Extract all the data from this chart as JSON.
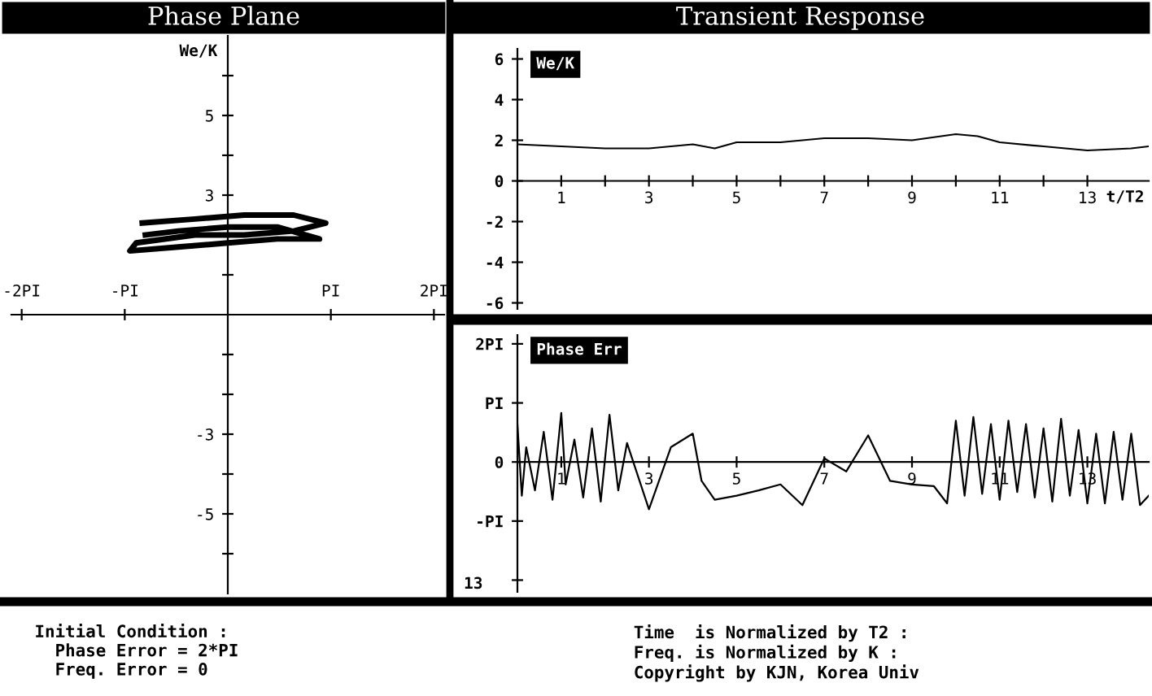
{
  "chart_data": [
    {
      "type": "line",
      "title": "Phase Plane",
      "ylabel": "We/K",
      "series": [
        {
          "color": "#000000",
          "x": [
            -0.83,
            -0.32,
            0.16,
            0.64,
            0.95,
            0.64,
            0.16,
            -0.32,
            -0.89,
            -0.95,
            -0.48,
            0.0,
            0.48,
            0.89,
            0.48,
            0.0,
            -0.48,
            -0.8
          ],
          "values": [
            2.3,
            2.4,
            2.5,
            2.5,
            2.3,
            2.1,
            2.0,
            2.0,
            1.8,
            1.6,
            1.7,
            1.8,
            1.9,
            1.9,
            2.2,
            2.2,
            2.1,
            2.0
          ]
        }
      ],
      "xlim": [
        -2.1,
        2.1
      ],
      "xticks": [
        {
          "value": -2,
          "label": "-2PI"
        },
        {
          "value": -1,
          "label": "-PI"
        },
        {
          "value": 1,
          "label": "PI"
        },
        {
          "value": 2,
          "label": "2PI"
        }
      ],
      "ylim": [
        -7,
        7
      ],
      "yticks": [
        {
          "value": -6,
          "label": null
        },
        -5,
        {
          "value": -4,
          "label": null
        },
        -3,
        {
          "value": -2,
          "label": null
        },
        {
          "value": -1,
          "label": null
        },
        {
          "value": 1,
          "label": null
        },
        {
          "value": 2,
          "label": null
        },
        3,
        {
          "value": 4,
          "label": null
        },
        5,
        {
          "value": 6,
          "label": null
        }
      ],
      "annotations": [
        "Initial Condition :",
        "  Phase Error = 2*PI",
        "  Freq. Error = 0",
        "Time  is Normalized by T2 :",
        "Freq. is Normalized by K :",
        "Copyright by KJN, Korea Univ"
      ]
    },
    {
      "type": "line",
      "title": "Transient Response",
      "ylabel": "We/K",
      "xlabel": "t/T2",
      "series": [
        {
          "color": "#000000",
          "x": [
            0,
            1,
            2,
            3,
            4,
            4.5,
            5,
            6,
            7,
            8,
            9,
            10,
            10.5,
            11,
            12,
            13,
            14,
            14.4
          ],
          "values": [
            1.8,
            1.7,
            1.6,
            1.6,
            1.8,
            1.6,
            1.9,
            1.9,
            2.1,
            2.1,
            2.0,
            2.3,
            2.2,
            1.9,
            1.7,
            1.5,
            1.6,
            1.7
          ]
        }
      ],
      "xlim": [
        0,
        14.4
      ],
      "xticks": [
        1,
        {
          "value": 2,
          "label": null
        },
        3,
        {
          "value": 4,
          "label": null
        },
        5,
        {
          "value": 6,
          "label": null
        },
        7,
        {
          "value": 8,
          "label": null
        },
        9,
        {
          "value": 10,
          "label": null
        },
        11,
        {
          "value": 12,
          "label": null
        },
        13
      ],
      "ylim": [
        -6.3,
        6.5
      ],
      "yticks": [
        -6,
        -4,
        -2,
        0,
        2,
        4,
        6
      ]
    },
    {
      "type": "line",
      "ylabel": "Phase Err",
      "series": [
        {
          "color": "#000000",
          "x": [
            0,
            0.1,
            0.2,
            0.4,
            0.6,
            0.8,
            1.0,
            1.1,
            1.3,
            1.5,
            1.7,
            1.9,
            2.1,
            2.3,
            2.5,
            3.0,
            3.5,
            4.0,
            4.2,
            4.5,
            5.0,
            5.5,
            6.0,
            6.5,
            7.0,
            7.5,
            8.0,
            8.5,
            9.0,
            9.5,
            9.8,
            10.0,
            10.2,
            10.4,
            10.6,
            10.8,
            11.0,
            11.2,
            11.4,
            11.6,
            11.8,
            12.0,
            12.2,
            12.4,
            12.6,
            12.8,
            13.0,
            13.2,
            13.4,
            13.6,
            13.8,
            14.0,
            14.2,
            14.4
          ],
          "values": [
            0.64,
            -0.57,
            0.25,
            -0.48,
            0.51,
            -0.64,
            0.83,
            -0.38,
            0.38,
            -0.6,
            0.57,
            -0.67,
            0.8,
            -0.48,
            0.32,
            -0.8,
            0.25,
            0.48,
            -0.32,
            -0.64,
            -0.57,
            -0.48,
            -0.38,
            -0.73,
            0.06,
            -0.16,
            0.45,
            -0.32,
            -0.38,
            -0.41,
            -0.7,
            0.7,
            -0.57,
            0.76,
            -0.54,
            0.64,
            -0.64,
            0.7,
            -0.51,
            0.64,
            -0.6,
            0.57,
            -0.67,
            0.73,
            -0.57,
            0.54,
            -0.7,
            0.48,
            -0.7,
            0.51,
            -0.64,
            0.48,
            -0.73,
            -0.57
          ]
        }
      ],
      "xlim": [
        0,
        14.4
      ],
      "xticks": [
        1,
        3,
        5,
        7,
        9,
        11,
        13
      ],
      "ylim": [
        -2.2,
        2.15
      ],
      "yticks": [
        {
          "value": -2,
          "label": null
        },
        {
          "value": -1,
          "label": "-PI"
        },
        0,
        {
          "value": 1,
          "label": "PI"
        },
        {
          "value": 2,
          "label": "2PI"
        }
      ],
      "annotations": [
        "13"
      ]
    }
  ]
}
